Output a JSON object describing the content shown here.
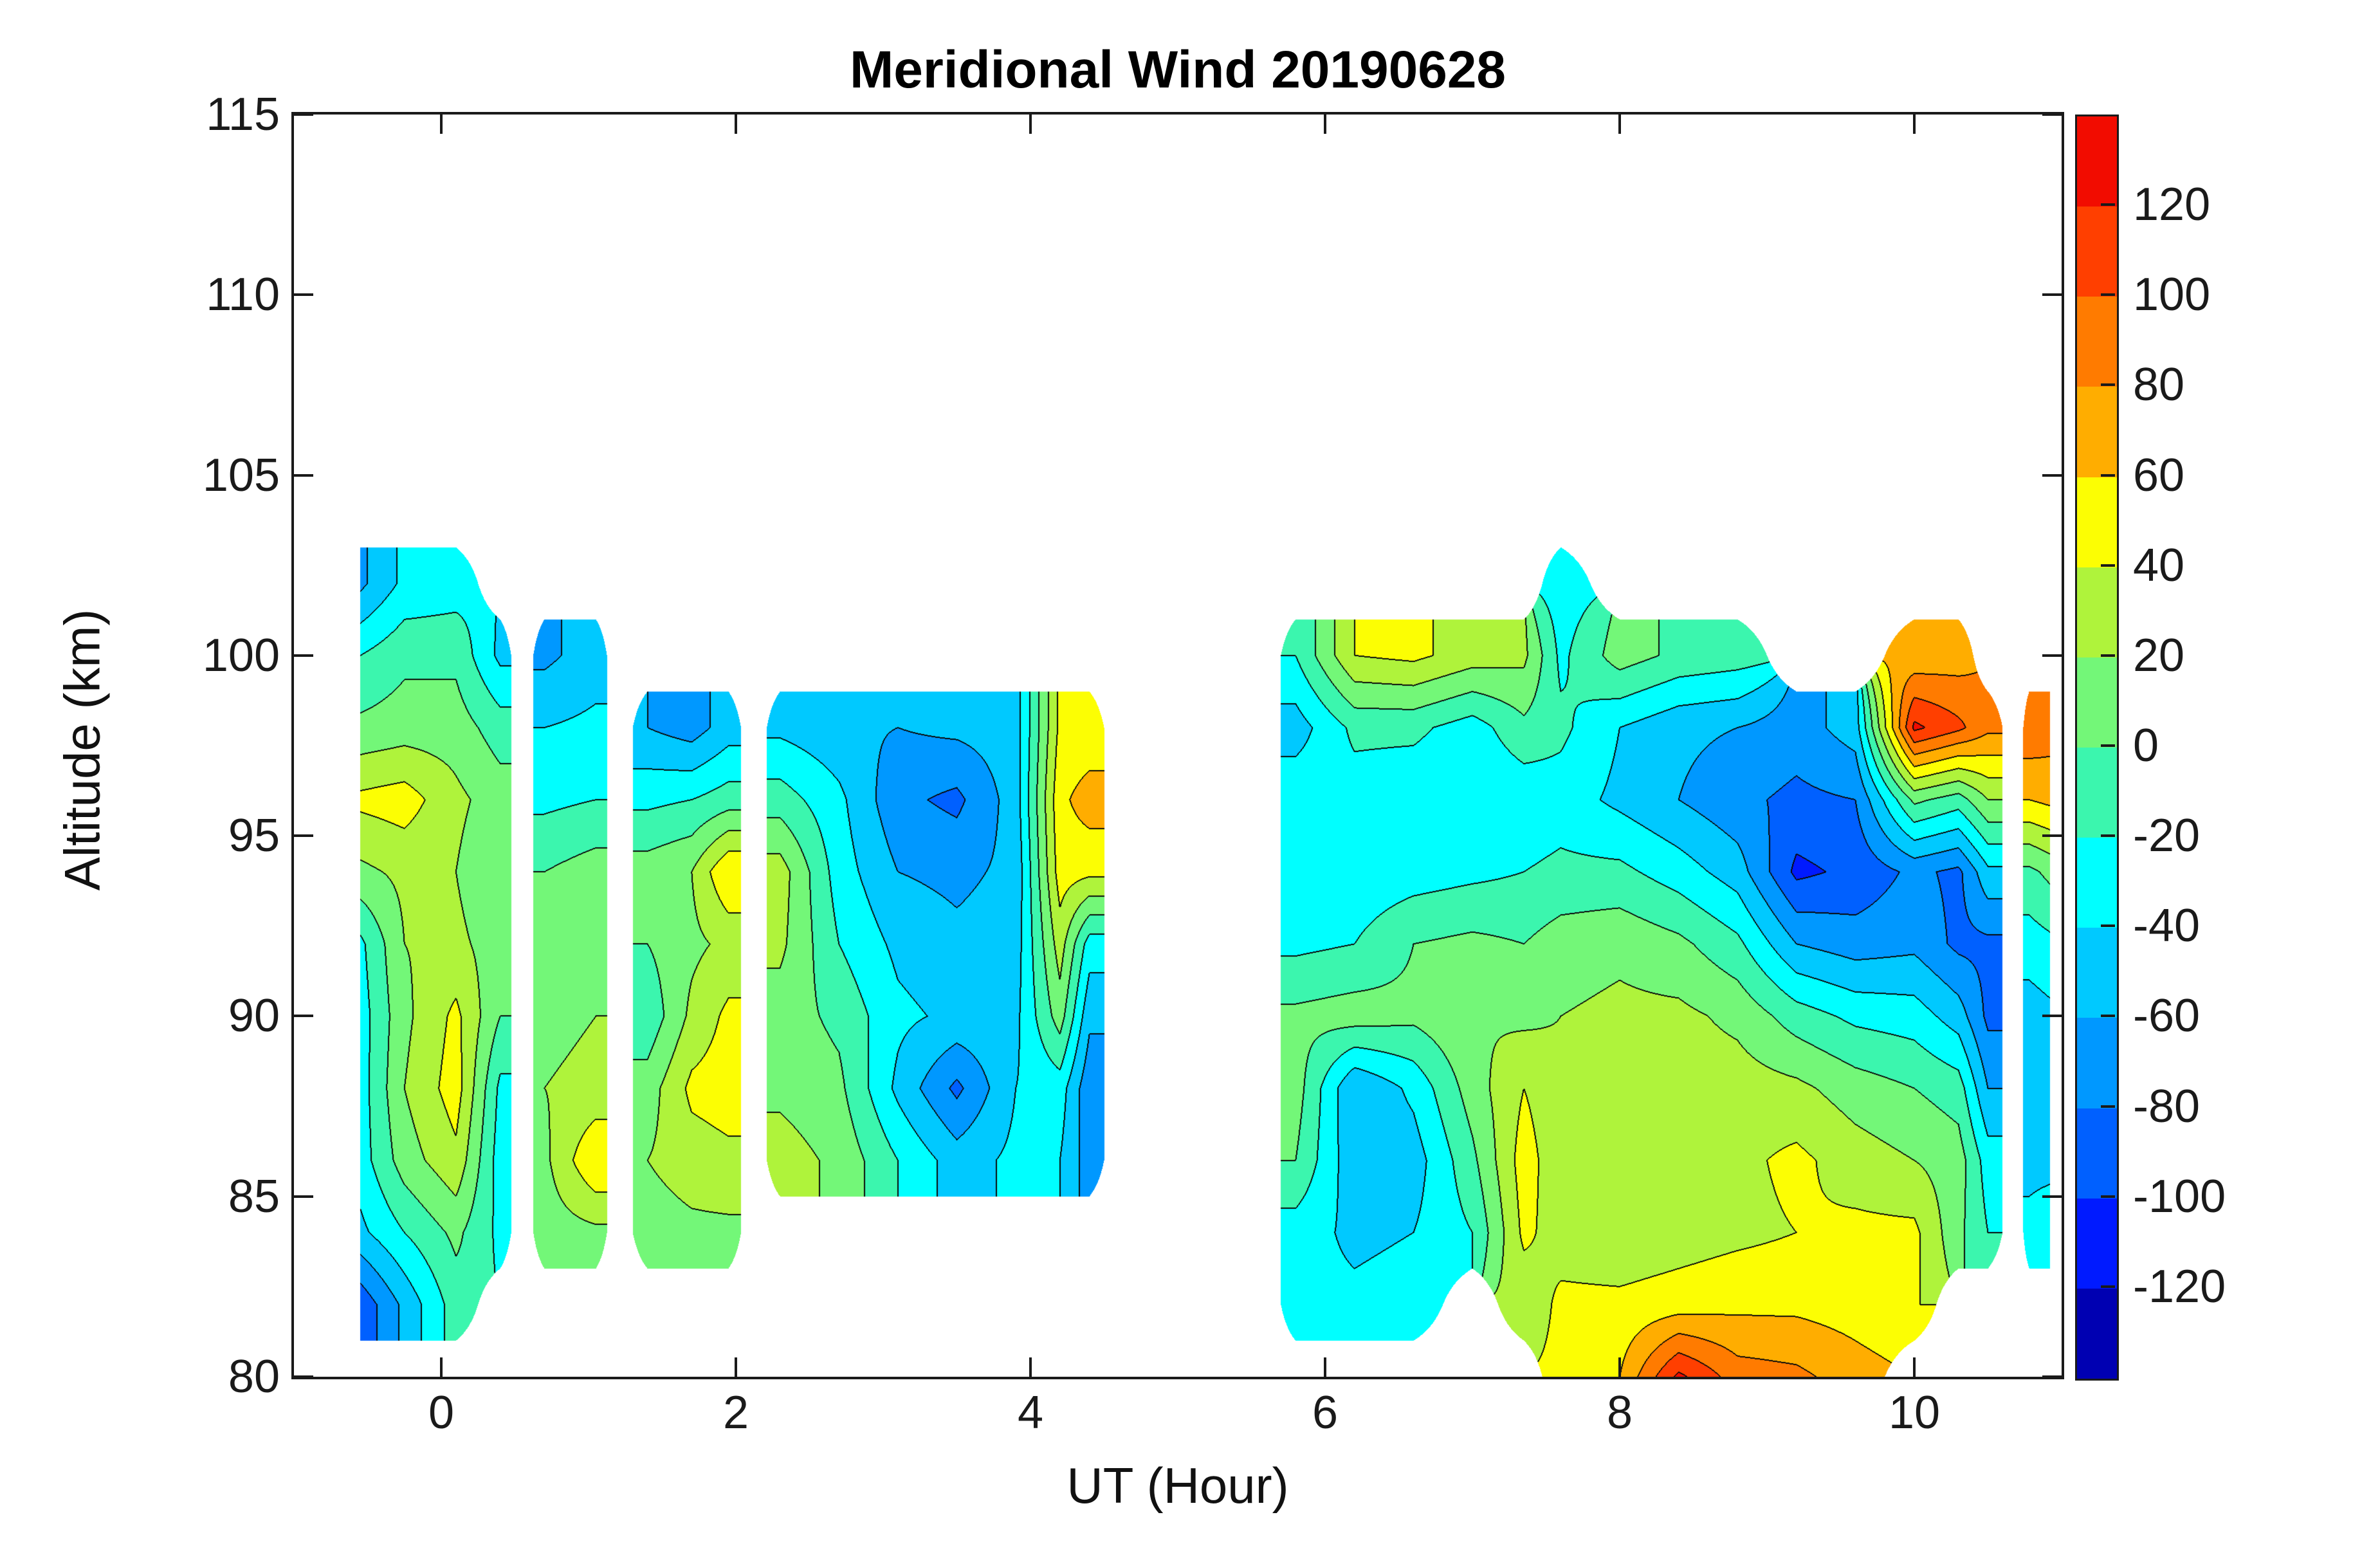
{
  "figure": {
    "background": "#FFFFFF",
    "axis_color": "#1A1A1A"
  },
  "chart_data": {
    "type": "heatmap",
    "subtype": "filled_contour",
    "title": "Meridional Wind 20190628",
    "xlabel": "UT (Hour)",
    "ylabel": "Altitude (km)",
    "xlim": [
      -1,
      11
    ],
    "ylim": [
      80,
      115
    ],
    "x_ticks": [
      0,
      2,
      4,
      6,
      8,
      10
    ],
    "y_ticks": [
      80,
      85,
      90,
      95,
      100,
      105,
      110,
      115
    ],
    "grid_lines": false,
    "contour_interval": 20,
    "contour_line_color": "#000000",
    "colorbar": {
      "position": "right",
      "tick_values": [
        120,
        100,
        80,
        60,
        40,
        20,
        0,
        -20,
        -40,
        -60,
        -80,
        -100,
        -120
      ],
      "band_min": -140,
      "band_max": 140,
      "band_colors_low_to_high": [
        "#0000B2",
        "#001AFF",
        "#0060FF",
        "#0098FF",
        "#00C9FF",
        "#00FFFF",
        "#3BF6AE",
        "#73F778",
        "#AFF33B",
        "#FCFE03",
        "#FFAD00",
        "#FF7B00",
        "#FF3F00",
        "#F20C00"
      ]
    },
    "grid": {
      "y_km": [
        80,
        82,
        84,
        86,
        88,
        90,
        92,
        94,
        96,
        98,
        100,
        102,
        104
      ],
      "columns": [
        {
          "x": -0.55,
          "v": [
            null,
            -95,
            -45,
            -30,
            -30,
            -30,
            -25,
            15,
            45,
            5,
            -20,
            -65,
            null
          ]
        },
        {
          "x": -0.25,
          "v": [
            null,
            -55,
            -20,
            10,
            20,
            15,
            20,
            25,
            50,
            10,
            -5,
            -35,
            null
          ]
        },
        {
          "x": 0.1,
          "v": [
            null,
            -10,
            5,
            35,
            50,
            45,
            25,
            20,
            25,
            10,
            -5,
            -30,
            null
          ]
        },
        {
          "x": 0.4,
          "v": [
            null,
            null,
            -25,
            -30,
            -25,
            0,
            10,
            0,
            10,
            -10,
            -45,
            null,
            null
          ]
        },
        {
          "x": 0.55,
          "v": [
            null,
            null,
            null,
            null,
            null,
            null,
            null,
            null,
            null,
            null,
            null,
            null,
            null
          ]
        },
        {
          "x": 0.7,
          "v": [
            null,
            null,
            10,
            15,
            20,
            15,
            5,
            0,
            -25,
            -40,
            -65,
            null,
            null
          ]
        },
        {
          "x": 1.05,
          "v": [
            null,
            null,
            15,
            60,
            25,
            20,
            15,
            10,
            -20,
            -35,
            -50,
            null,
            null
          ]
        },
        {
          "x": 1.2,
          "v": [
            null,
            null,
            null,
            null,
            null,
            null,
            null,
            null,
            null,
            null,
            null,
            null,
            null
          ]
        },
        {
          "x": 1.4,
          "v": [
            null,
            null,
            10,
            20,
            10,
            -15,
            0,
            10,
            -25,
            -60,
            null,
            null,
            null
          ]
        },
        {
          "x": 1.7,
          "v": [
            null,
            null,
            15,
            30,
            45,
            25,
            15,
            20,
            -20,
            -70,
            null,
            null,
            null
          ]
        },
        {
          "x": 1.95,
          "v": [
            null,
            null,
            15,
            35,
            50,
            45,
            25,
            60,
            -10,
            -50,
            null,
            null,
            null
          ]
        },
        {
          "x": 2.12,
          "v": [
            null,
            null,
            null,
            null,
            null,
            null,
            null,
            null,
            null,
            null,
            null,
            null,
            null
          ]
        },
        {
          "x": 2.3,
          "v": [
            null,
            null,
            null,
            30,
            15,
            10,
            25,
            30,
            -10,
            -45,
            null,
            null,
            null
          ]
        },
        {
          "x": 2.7,
          "v": [
            null,
            null,
            null,
            15,
            5,
            -5,
            -20,
            -30,
            -35,
            -55,
            null,
            null,
            null
          ]
        },
        {
          "x": 3.1,
          "v": [
            null,
            null,
            null,
            -20,
            -45,
            -35,
            -45,
            -60,
            -75,
            -60,
            null,
            null,
            null
          ]
        },
        {
          "x": 3.5,
          "v": [
            null,
            null,
            null,
            -50,
            -85,
            -45,
            -55,
            -65,
            -85,
            -55,
            null,
            null,
            null
          ]
        },
        {
          "x": 3.9,
          "v": [
            null,
            null,
            null,
            -35,
            -40,
            -45,
            -50,
            -55,
            -50,
            -50,
            null,
            null,
            null
          ]
        },
        {
          "x": 4.2,
          "v": [
            null,
            null,
            null,
            -40,
            -30,
            10,
            30,
            50,
            55,
            45,
            null,
            null,
            null
          ]
        },
        {
          "x": 4.4,
          "v": [
            null,
            null,
            null,
            -70,
            -75,
            -55,
            -30,
            45,
            70,
            45,
            null,
            null,
            null
          ]
        },
        {
          "x": 4.6,
          "v": [
            null,
            null,
            null,
            null,
            null,
            null,
            null,
            null,
            null,
            null,
            null,
            null,
            null
          ]
        },
        {
          "x": 5.6,
          "v": [
            null,
            null,
            null,
            null,
            null,
            null,
            null,
            null,
            null,
            null,
            null,
            null,
            null
          ]
        },
        {
          "x": 5.8,
          "v": [
            null,
            -35,
            -30,
            0,
            10,
            5,
            -25,
            -30,
            -25,
            -50,
            -20,
            null,
            null
          ]
        },
        {
          "x": 6.2,
          "v": [
            null,
            -35,
            -45,
            -55,
            -60,
            10,
            -20,
            -35,
            -30,
            -15,
            40,
            null,
            null
          ]
        },
        {
          "x": 6.6,
          "v": [
            null,
            -30,
            -40,
            -50,
            -35,
            5,
            0,
            -30,
            -35,
            -15,
            45,
            null,
            null
          ]
        },
        {
          "x": 7.0,
          "v": [
            null,
            null,
            -20,
            -5,
            10,
            20,
            5,
            -25,
            -40,
            -30,
            30,
            null,
            null
          ]
        },
        {
          "x": 7.35,
          "v": [
            null,
            25,
            45,
            50,
            40,
            15,
            0,
            -20,
            -35,
            -5,
            25,
            null,
            null
          ]
        },
        {
          "x": 7.6,
          "v": [
            45,
            45,
            30,
            25,
            25,
            20,
            10,
            -15,
            -30,
            -15,
            -25,
            -30,
            null
          ]
        },
        {
          "x": 8.0,
          "v": [
            60,
            45,
            25,
            20,
            25,
            25,
            15,
            -15,
            -45,
            -40,
            10,
            null,
            null
          ]
        },
        {
          "x": 8.4,
          "v": [
            125,
            50,
            30,
            25,
            30,
            25,
            5,
            -30,
            -60,
            -55,
            -5,
            null,
            null
          ]
        },
        {
          "x": 8.8,
          "v": [
            90,
            55,
            35,
            35,
            30,
            15,
            -15,
            -50,
            -75,
            -60,
            -10,
            null,
            null
          ]
        },
        {
          "x": 9.2,
          "v": [
            85,
            55,
            40,
            45,
            25,
            -10,
            -60,
            -105,
            -85,
            -70,
            null,
            null,
            null
          ]
        },
        {
          "x": 9.6,
          "v": [
            70,
            50,
            45,
            30,
            10,
            -25,
            -70,
            -95,
            -80,
            -50,
            null,
            null,
            null
          ]
        },
        {
          "x": 10.0,
          "v": [
            null,
            40,
            45,
            20,
            0,
            -30,
            -65,
            -75,
            5,
            125,
            65,
            null,
            null
          ]
        },
        {
          "x": 10.3,
          "v": [
            null,
            null,
            5,
            10,
            -10,
            -50,
            -85,
            -85,
            -10,
            105,
            70,
            null,
            null
          ]
        },
        {
          "x": 10.5,
          "v": [
            null,
            null,
            -20,
            -30,
            -60,
            -85,
            -85,
            -45,
            20,
            85,
            null,
            null,
            null
          ]
        },
        {
          "x": 10.7,
          "v": [
            null,
            null,
            null,
            null,
            null,
            null,
            null,
            null,
            null,
            null,
            null,
            null,
            null
          ]
        },
        {
          "x": 10.78,
          "v": [
            null,
            null,
            -35,
            -45,
            -55,
            -50,
            -30,
            -5,
            60,
            95,
            null,
            null,
            null
          ]
        },
        {
          "x": 10.92,
          "v": [
            null,
            null,
            -30,
            -45,
            -55,
            -45,
            -25,
            5,
            65,
            90,
            null,
            null,
            null
          ]
        }
      ]
    }
  }
}
